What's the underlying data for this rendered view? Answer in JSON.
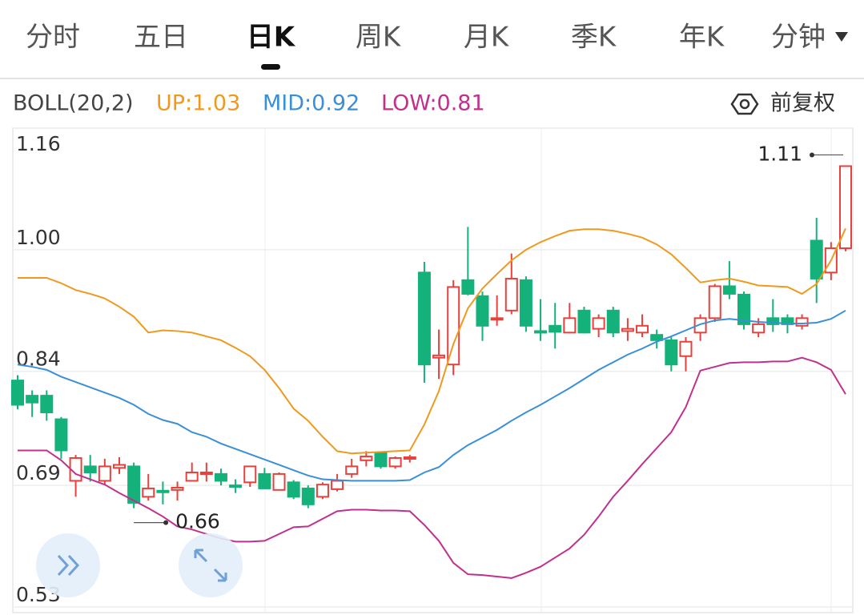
{
  "tabs": [
    "分时",
    "五日",
    "日K",
    "周K",
    "月K",
    "季K",
    "年K",
    "分钟"
  ],
  "selected_tab": 2,
  "indicator": {
    "name": "BOLL(20,2)",
    "up": "UP:1.03",
    "mid": "MID:0.92",
    "low": "LOW:0.81"
  },
  "adjust_label": "前复权",
  "chart_data": {
    "type": "candlestick",
    "ylim": [
      0.53,
      1.16
    ],
    "yticks": [
      1.16,
      {
        "value": 1,
        "label": "1.00"
      },
      0.84,
      0.69,
      0.53
    ],
    "grid": true,
    "up_color": "#e8413c",
    "down_color": "#14b27a",
    "open": [
      0.828,
      0.808,
      0.808,
      0.777,
      0.696,
      0.715,
      0.696,
      0.713,
      0.715,
      0.675,
      0.683,
      0.684,
      0.696,
      0.705,
      0.705,
      0.69,
      0.694,
      0.705,
      0.684,
      0.694,
      0.686,
      0.675,
      0.685,
      0.705,
      0.723,
      0.733,
      0.715,
      0.725,
      0.97,
      0.858,
      0.849,
      0.96,
      0.939,
      0.908,
      0.92,
      0.96,
      0.893,
      0.9,
      0.891,
      0.92,
      0.896,
      0.92,
      0.893,
      0.891,
      0.888,
      0.881,
      0.86,
      0.891,
      0.91,
      0.952,
      0.941,
      0.891,
      0.91,
      0.91,
      0.9,
      1.012,
      0.97,
      1.002
    ],
    "high": [
      0.835,
      0.815,
      0.815,
      0.78,
      0.73,
      0.73,
      0.725,
      0.727,
      0.72,
      0.705,
      0.695,
      0.695,
      0.72,
      0.72,
      0.712,
      0.698,
      0.715,
      0.713,
      0.707,
      0.697,
      0.69,
      0.694,
      0.705,
      0.725,
      0.735,
      0.735,
      0.728,
      0.73,
      0.984,
      0.895,
      0.96,
      1.03,
      0.945,
      0.94,
      0.995,
      0.965,
      0.935,
      0.93,
      0.93,
      0.925,
      0.915,
      0.925,
      0.91,
      0.915,
      0.895,
      0.885,
      0.885,
      0.915,
      0.955,
      0.985,
      0.945,
      0.91,
      0.935,
      0.915,
      0.915,
      1.042,
      1.01,
      1.11
    ],
    "low": [
      0.79,
      0.78,
      0.775,
      0.725,
      0.675,
      0.695,
      0.69,
      0.705,
      0.66,
      0.67,
      0.665,
      0.67,
      0.695,
      0.695,
      0.69,
      0.68,
      0.688,
      0.685,
      0.684,
      0.672,
      0.66,
      0.672,
      0.682,
      0.7,
      0.715,
      0.712,
      0.712,
      0.72,
      0.825,
      0.83,
      0.835,
      0.94,
      0.88,
      0.9,
      0.915,
      0.892,
      0.88,
      0.87,
      0.89,
      0.89,
      0.885,
      0.885,
      0.88,
      0.885,
      0.87,
      0.84,
      0.84,
      0.88,
      0.905,
      0.935,
      0.895,
      0.885,
      0.892,
      0.89,
      0.895,
      0.93,
      0.96,
      0.998
    ],
    "close": [
      0.796,
      0.799,
      0.786,
      0.736,
      0.726,
      0.707,
      0.715,
      0.717,
      0.667,
      0.686,
      0.681,
      0.687,
      0.707,
      0.707,
      0.696,
      0.688,
      0.715,
      0.686,
      0.705,
      0.675,
      0.665,
      0.691,
      0.696,
      0.715,
      0.728,
      0.715,
      0.726,
      0.727,
      0.849,
      0.861,
      0.951,
      0.942,
      0.9,
      0.91,
      0.962,
      0.9,
      0.891,
      0.892,
      0.91,
      0.891,
      0.91,
      0.891,
      0.896,
      0.9,
      0.881,
      0.849,
      0.879,
      0.91,
      0.952,
      0.942,
      0.902,
      0.902,
      0.902,
      0.902,
      0.91,
      0.962,
      1.002,
      1.11
    ],
    "series": [
      {
        "name": "UP",
        "color": "#ef9a1e",
        "values": [
          0.963,
          0.963,
          0.963,
          0.956,
          0.947,
          0.942,
          0.936,
          0.925,
          0.912,
          0.891,
          0.894,
          0.893,
          0.891,
          0.886,
          0.881,
          0.871,
          0.86,
          0.842,
          0.818,
          0.791,
          0.775,
          0.754,
          0.735,
          0.732,
          0.733,
          0.734,
          0.735,
          0.736,
          0.77,
          0.814,
          0.876,
          0.923,
          0.949,
          0.968,
          0.986,
          1.0,
          1.01,
          1.018,
          1.025,
          1.027,
          1.027,
          1.025,
          1.021,
          1.016,
          1.007,
          0.994,
          0.976,
          0.957,
          0.96,
          0.962,
          0.958,
          0.953,
          0.952,
          0.951,
          0.942,
          0.955,
          0.986,
          1.028
        ]
      },
      {
        "name": "MID",
        "color": "#3a8fd6",
        "values": [
          0.849,
          0.846,
          0.842,
          0.833,
          0.826,
          0.819,
          0.812,
          0.805,
          0.796,
          0.784,
          0.776,
          0.771,
          0.76,
          0.754,
          0.745,
          0.738,
          0.731,
          0.724,
          0.717,
          0.71,
          0.703,
          0.698,
          0.697,
          0.696,
          0.696,
          0.696,
          0.696,
          0.697,
          0.707,
          0.714,
          0.73,
          0.743,
          0.753,
          0.763,
          0.775,
          0.786,
          0.796,
          0.807,
          0.818,
          0.83,
          0.842,
          0.852,
          0.862,
          0.87,
          0.879,
          0.886,
          0.894,
          0.902,
          0.907,
          0.909,
          0.907,
          0.905,
          0.904,
          0.903,
          0.903,
          0.904,
          0.909,
          0.92
        ]
      },
      {
        "name": "LOW",
        "color": "#c1308e",
        "values": [
          0.736,
          0.736,
          0.736,
          0.723,
          0.705,
          0.698,
          0.691,
          0.68,
          0.67,
          0.66,
          0.649,
          0.636,
          0.632,
          0.626,
          0.62,
          0.616,
          0.616,
          0.617,
          0.626,
          0.635,
          0.636,
          0.646,
          0.656,
          0.658,
          0.658,
          0.657,
          0.657,
          0.656,
          0.638,
          0.617,
          0.588,
          0.573,
          0.572,
          0.57,
          0.568,
          0.575,
          0.583,
          0.595,
          0.607,
          0.625,
          0.649,
          0.675,
          0.696,
          0.718,
          0.739,
          0.76,
          0.793,
          0.841,
          0.846,
          0.851,
          0.852,
          0.852,
          0.853,
          0.853,
          0.858,
          0.852,
          0.842,
          0.81
        ]
      }
    ],
    "high_label": 1.11,
    "low_label": 0.66
  }
}
